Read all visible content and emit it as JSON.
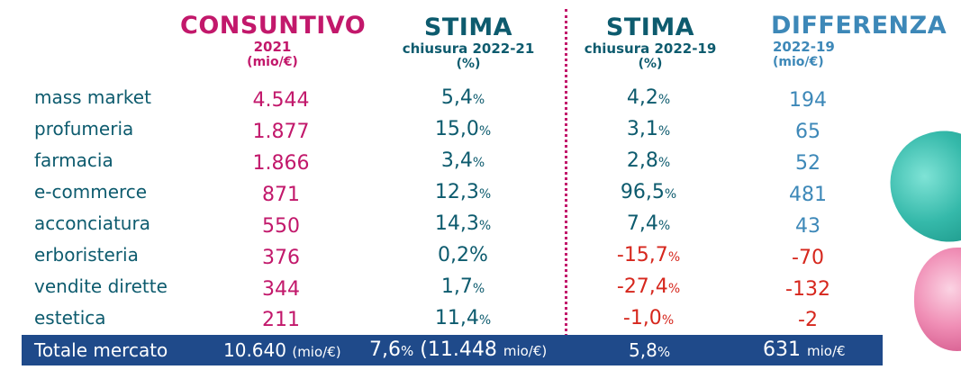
{
  "headers": {
    "col1": {
      "title": "CONSUNTIVO",
      "sub": "2021",
      "unit": "(mio/€)"
    },
    "col2": {
      "title": "STIMA",
      "sub": "chiusura 2022-21",
      "unit": "(%)"
    },
    "col3": {
      "title": "STIMA",
      "sub": "chiusura 2022-19",
      "unit": "(%)"
    },
    "col4": {
      "title": "DIFFERENZA",
      "sub": "2022-19",
      "unit": "(mio/€)"
    }
  },
  "rows": [
    {
      "category": "mass market",
      "consuntivo": "4.544",
      "stima21": "5,4",
      "stima21_pct": "%",
      "stima19": "4,2",
      "stima19_pct": "%",
      "diff": "194"
    },
    {
      "category": "profumeria",
      "consuntivo": "1.877",
      "stima21": "15,0",
      "stima21_pct": "%",
      "stima19": "3,1",
      "stima19_pct": "%",
      "diff": "65"
    },
    {
      "category": "farmacia",
      "consuntivo": "1.866",
      "stima21": "3,4",
      "stima21_pct": "%",
      "stima19": "2,8",
      "stima19_pct": "%",
      "diff": "52"
    },
    {
      "category": "e-commerce",
      "consuntivo": "871",
      "stima21": "12,3",
      "stima21_pct": "%",
      "stima19": "96,5",
      "stima19_pct": "%",
      "diff": "481"
    },
    {
      "category": "acconciatura",
      "consuntivo": "550",
      "stima21": "14,3",
      "stima21_pct": "%",
      "stima19": "7,4",
      "stima19_pct": "%",
      "diff": "43"
    },
    {
      "category": "erboristeria",
      "consuntivo": "376",
      "stima21": "0,2%",
      "stima21_pct": "",
      "stima19": "-15,7",
      "stima19_pct": "%",
      "diff": "-70"
    },
    {
      "category": "vendite dirette",
      "consuntivo": "344",
      "stima21": "1,7",
      "stima21_pct": "%",
      "stima19": "-27,4",
      "stima19_pct": "%",
      "diff": "-132"
    },
    {
      "category": "estetica",
      "consuntivo": "211",
      "stima21": "11,4",
      "stima21_pct": "%",
      "stima19": "-1,0",
      "stima19_pct": "%",
      "diff": "-2"
    }
  ],
  "total": {
    "label": "Totale mercato",
    "consuntivo": "10.640",
    "consuntivo_unit": "(mio/€)",
    "stima21": "7,6",
    "stima21_pct": "%",
    "stima21_extra": "(11.448",
    "stima21_extra_unit": "mio/€)",
    "stima19": "5,8",
    "stima19_pct": "%",
    "diff": "631",
    "diff_unit": "mio/€"
  },
  "colors": {
    "consuntivo": "#c2186b",
    "stima": "#0d5b6e",
    "differenza": "#3d88b8",
    "negative": "#d6271d",
    "total_bar": "#1f4a8a"
  }
}
